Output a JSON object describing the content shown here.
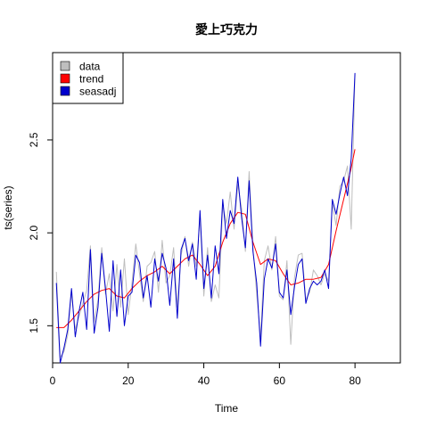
{
  "chart_data": {
    "type": "line",
    "title": "愛上巧克力",
    "xlabel": "Time",
    "ylabel": "ts(series)",
    "xlim": [
      0,
      92
    ],
    "ylim": [
      1.3,
      2.97
    ],
    "xticks": [
      0,
      20,
      40,
      60,
      80
    ],
    "yticks": [
      1.5,
      2.0,
      2.5
    ],
    "legend_position": "top-left",
    "series": [
      {
        "name": "data",
        "color": "#bebebe",
        "x": [
          1,
          2,
          3,
          4,
          5,
          6,
          7,
          8,
          9,
          10,
          11,
          12,
          13,
          14,
          15,
          16,
          17,
          18,
          19,
          20,
          21,
          22,
          23,
          24,
          25,
          26,
          27,
          28,
          29,
          30,
          31,
          32,
          33,
          34,
          35,
          36,
          37,
          38,
          39,
          40,
          41,
          42,
          43,
          44,
          45,
          46,
          47,
          48,
          49,
          50,
          51,
          52,
          53,
          54,
          55,
          56,
          57,
          58,
          59,
          60,
          61,
          62,
          63,
          64,
          65,
          66,
          67,
          68,
          69,
          70,
          71,
          72,
          73,
          74,
          75,
          76,
          77,
          78,
          79,
          80
        ],
        "values": [
          1.79,
          1.33,
          1.36,
          1.45,
          1.68,
          1.48,
          1.55,
          1.62,
          1.69,
          1.93,
          1.52,
          1.64,
          1.92,
          1.67,
          1.78,
          1.58,
          1.83,
          1.6,
          1.86,
          1.56,
          1.73,
          1.94,
          1.78,
          1.63,
          1.82,
          1.84,
          1.9,
          1.68,
          1.96,
          1.73,
          1.77,
          1.92,
          1.6,
          1.88,
          1.98,
          1.82,
          1.95,
          1.82,
          2.08,
          1.66,
          1.92,
          1.63,
          1.72,
          1.65,
          2.15,
          2.05,
          2.22,
          2.02,
          2.26,
          2.13,
          1.9,
          2.33,
          1.92,
          1.67,
          1.44,
          1.85,
          1.93,
          1.8,
          1.98,
          1.66,
          1.64,
          1.85,
          1.4,
          1.76,
          1.88,
          1.89,
          1.64,
          1.68,
          1.8,
          1.77,
          1.72,
          1.78,
          1.74,
          2.16,
          2.04,
          2.25,
          2.28,
          2.36,
          2.02,
          2.85
        ]
      },
      {
        "name": "trend",
        "color": "#ff0000",
        "x": [
          1,
          3,
          5,
          7,
          9,
          11,
          13,
          15,
          17,
          19,
          21,
          23,
          25,
          27,
          29,
          31,
          33,
          35,
          37,
          39,
          41,
          43,
          45,
          47,
          49,
          51,
          53,
          55,
          57,
          59,
          61,
          63,
          65,
          67,
          69,
          71,
          73,
          75,
          77,
          79,
          80
        ],
        "values": [
          1.49,
          1.49,
          1.53,
          1.58,
          1.63,
          1.67,
          1.69,
          1.7,
          1.66,
          1.65,
          1.7,
          1.74,
          1.77,
          1.79,
          1.82,
          1.78,
          1.82,
          1.86,
          1.88,
          1.83,
          1.77,
          1.82,
          1.95,
          2.05,
          2.11,
          2.1,
          1.95,
          1.83,
          1.86,
          1.85,
          1.78,
          1.72,
          1.73,
          1.75,
          1.75,
          1.76,
          1.83,
          2.01,
          2.18,
          2.35,
          2.45
        ]
      },
      {
        "name": "seasadj",
        "color": "#0000cc",
        "x": [
          1,
          2,
          3,
          4,
          5,
          6,
          7,
          8,
          9,
          10,
          11,
          12,
          13,
          14,
          15,
          16,
          17,
          18,
          19,
          20,
          21,
          22,
          23,
          24,
          25,
          26,
          27,
          28,
          29,
          30,
          31,
          32,
          33,
          34,
          35,
          36,
          37,
          38,
          39,
          40,
          41,
          42,
          43,
          44,
          45,
          46,
          47,
          48,
          49,
          50,
          51,
          52,
          53,
          54,
          55,
          56,
          57,
          58,
          59,
          60,
          61,
          62,
          63,
          64,
          65,
          66,
          67,
          68,
          69,
          70,
          71,
          72,
          73,
          74,
          75,
          76,
          77,
          78,
          79,
          80
        ],
        "values": [
          1.73,
          1.3,
          1.38,
          1.48,
          1.7,
          1.44,
          1.58,
          1.68,
          1.48,
          1.91,
          1.46,
          1.6,
          1.89,
          1.7,
          1.47,
          1.85,
          1.55,
          1.8,
          1.5,
          1.66,
          1.68,
          1.88,
          1.84,
          1.65,
          1.77,
          1.6,
          1.86,
          1.74,
          1.89,
          1.81,
          1.61,
          1.86,
          1.54,
          1.91,
          1.97,
          1.85,
          1.94,
          1.75,
          2.12,
          1.7,
          1.88,
          1.65,
          1.93,
          1.78,
          2.18,
          1.97,
          2.12,
          2.05,
          2.3,
          2.08,
          1.92,
          2.28,
          1.9,
          1.73,
          1.39,
          1.75,
          1.86,
          1.81,
          1.94,
          1.68,
          1.65,
          1.8,
          1.56,
          1.71,
          1.83,
          1.86,
          1.62,
          1.7,
          1.74,
          1.72,
          1.74,
          1.8,
          1.7,
          2.18,
          2.1,
          2.21,
          2.3,
          2.2,
          2.4,
          2.86
        ]
      }
    ]
  }
}
